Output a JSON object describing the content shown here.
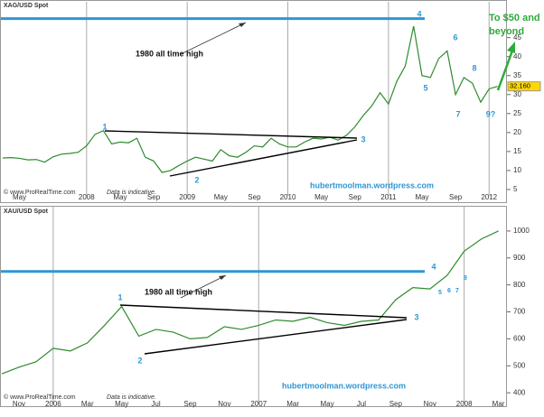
{
  "chart_data": [
    {
      "type": "line",
      "title": "XAG/USD Spot",
      "categories": [
        null,
        null,
        "May",
        null,
        null,
        null,
        null,
        null,
        null,
        null,
        "2008",
        null,
        null,
        null,
        "May",
        null,
        null,
        null,
        "Sep",
        null,
        null,
        null,
        "2009",
        null,
        null,
        null,
        "May",
        null,
        null,
        null,
        "Sep",
        null,
        null,
        null,
        "2010",
        null,
        null,
        null,
        "May",
        null,
        null,
        null,
        "Sep",
        null,
        null,
        null,
        "2011",
        null,
        null,
        null,
        "May",
        null,
        null,
        null,
        "Sep",
        null,
        null,
        null,
        "2012",
        null
      ],
      "values": [
        13.3,
        13.4,
        13.2,
        12.8,
        12.9,
        12.2,
        13.6,
        14.3,
        14.5,
        14.8,
        16.5,
        19.5,
        20.5,
        17.0,
        17.5,
        17.3,
        18.5,
        13.5,
        12.5,
        9.5,
        10.0,
        11.3,
        12.5,
        13.5,
        13.0,
        12.5,
        15.5,
        13.9,
        13.5,
        14.8,
        16.5,
        16.2,
        18.5,
        17.0,
        16.2,
        16.2,
        17.5,
        18.5,
        18.3,
        18.8,
        18.0,
        19.3,
        21.5,
        24.5,
        27.0,
        30.5,
        27.5,
        33.5,
        37.5,
        48.0,
        35.0,
        34.5,
        39.5,
        41.5,
        30.0,
        34.5,
        33.0,
        28.0,
        31.5,
        32.16
      ],
      "color": "#2e8b2e",
      "ylim": [
        3.8,
        53
      ],
      "yticks": [
        5,
        10,
        15,
        20,
        25,
        30,
        35,
        40,
        45
      ],
      "reference_line": {
        "value": 50,
        "label": "1980 all time high",
        "color": "#2e97d6"
      },
      "price_marker": {
        "value": 32.16,
        "label": "32.160"
      },
      "wave_labels": [
        "1",
        "2",
        "3",
        "4",
        "5",
        "6",
        "7",
        "8",
        "9?"
      ],
      "source": "hubertmoolman.wordpress.com",
      "copyright": "© www.ProRealTime.com",
      "disclaimer": "Data is indicative.",
      "target": [
        "To $50 and",
        "beyond"
      ]
    },
    {
      "type": "line",
      "title": "XAU/USD Spot",
      "categories": [
        null,
        "Nov",
        null,
        "2006",
        null,
        "Mar",
        null,
        "May",
        null,
        "Jul",
        null,
        "Sep",
        null,
        "Nov",
        null,
        "2007",
        null,
        "Mar",
        null,
        "May",
        null,
        "Jul",
        null,
        "Sep",
        null,
        "Nov",
        null,
        "2008",
        null,
        "Mar"
      ],
      "values": [
        470,
        495,
        515,
        565,
        555,
        585,
        650,
        720,
        610,
        635,
        625,
        600,
        605,
        645,
        635,
        650,
        670,
        665,
        680,
        660,
        650,
        665,
        670,
        745,
        790,
        785,
        835,
        925,
        970,
        1000
      ],
      "color": "#2e8b2e",
      "ylim": [
        367,
        1070
      ],
      "yticks": [
        400,
        500,
        600,
        700,
        800,
        900,
        1000
      ],
      "reference_line": {
        "value": 850,
        "label": "1980 all time high",
        "color": "#2e97d6"
      },
      "wave_labels": [
        "1",
        "2",
        "3",
        "4",
        "5",
        "6",
        "7",
        "8"
      ],
      "source": "hubertmoolman.wordpress.com",
      "copyright": "© www.ProRealTime.com",
      "disclaimer": "Data is indicative."
    }
  ]
}
